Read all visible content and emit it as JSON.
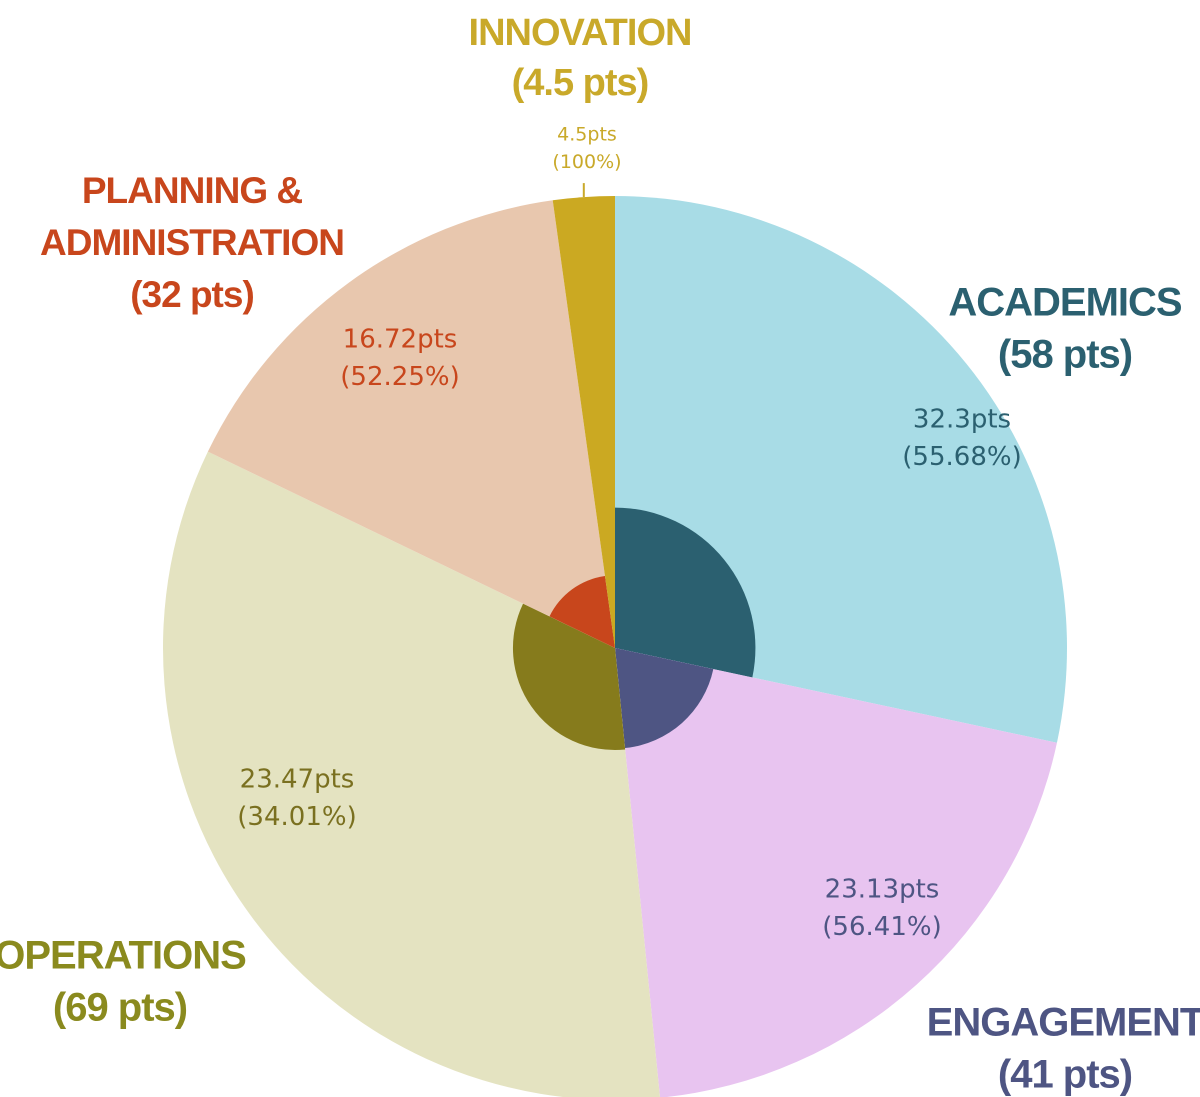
{
  "chart_data": {
    "type": "pie",
    "title": "",
    "categories": [
      {
        "name_lines": [
          "ACADEMICS"
        ],
        "total_label": "(58 pts)",
        "total": 58,
        "earned": 32.3,
        "earned_label": "32.3pts",
        "pct_label": "(55.68%)",
        "light": "#a8dce6",
        "dark": "#2b6070",
        "text_color": "#2b6070",
        "value_color": "#2b6070"
      },
      {
        "name_lines": [
          "ENGAGEMENT"
        ],
        "total_label": "(41 pts)",
        "total": 41,
        "earned": 23.13,
        "earned_label": "23.13pts",
        "pct_label": "(56.41%)",
        "light": "#e8c4f0",
        "dark": "#4e5583",
        "text_color": "#4e5583",
        "value_color": "#4e5583"
      },
      {
        "name_lines": [
          "OPERATIONS"
        ],
        "total_label": "(69 pts)",
        "total": 69,
        "earned": 23.47,
        "earned_label": "23.47pts",
        "pct_label": "(34.01%)",
        "light": "#e4e3c1",
        "dark": "#867b1c",
        "text_color": "#8a8a1e",
        "value_color": "#7a7020"
      },
      {
        "name_lines": [
          "PLANNING &",
          "ADMINISTRATION"
        ],
        "total_label": "(32 pts)",
        "total": 32,
        "earned": 16.72,
        "earned_label": "16.72pts",
        "pct_label": "(52.25%)",
        "light": "#e8c7ae",
        "dark": "#c8461c",
        "text_color": "#c8461c",
        "value_color": "#c8461c"
      },
      {
        "name_lines": [
          "INNOVATION"
        ],
        "total_label": "(4.5 pts)",
        "total": 4.5,
        "earned": 4.5,
        "earned_label": "4.5pts",
        "pct_label": "(100%)",
        "light": "#cba922",
        "dark": "#cba922",
        "text_color": "#c9a92a",
        "value_color": "#c9a92a"
      }
    ]
  }
}
